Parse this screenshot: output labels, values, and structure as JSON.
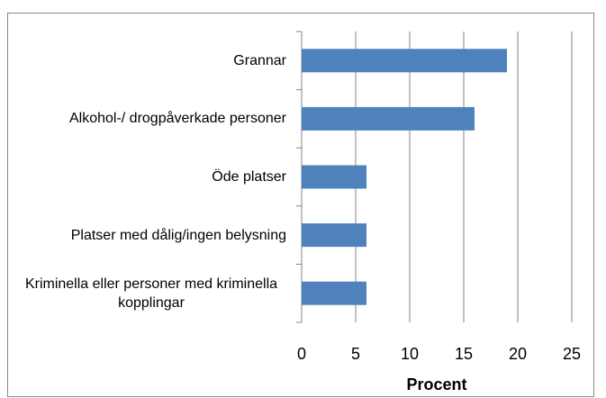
{
  "chart_data": {
    "type": "bar",
    "orientation": "horizontal",
    "categories": [
      "Grannar",
      "Alkohol-/ drogpåverkade personer",
      "Öde platser",
      "Platser med dålig/ingen belysning",
      "Kriminella eller personer med kriminella kopplingar"
    ],
    "values": [
      19,
      16,
      6,
      6,
      6
    ],
    "color": "#4f81bd",
    "xlim": [
      0,
      25
    ],
    "xticks": [
      0,
      5,
      10,
      15,
      20,
      25
    ],
    "xlabel": "Procent",
    "grid": true
  }
}
